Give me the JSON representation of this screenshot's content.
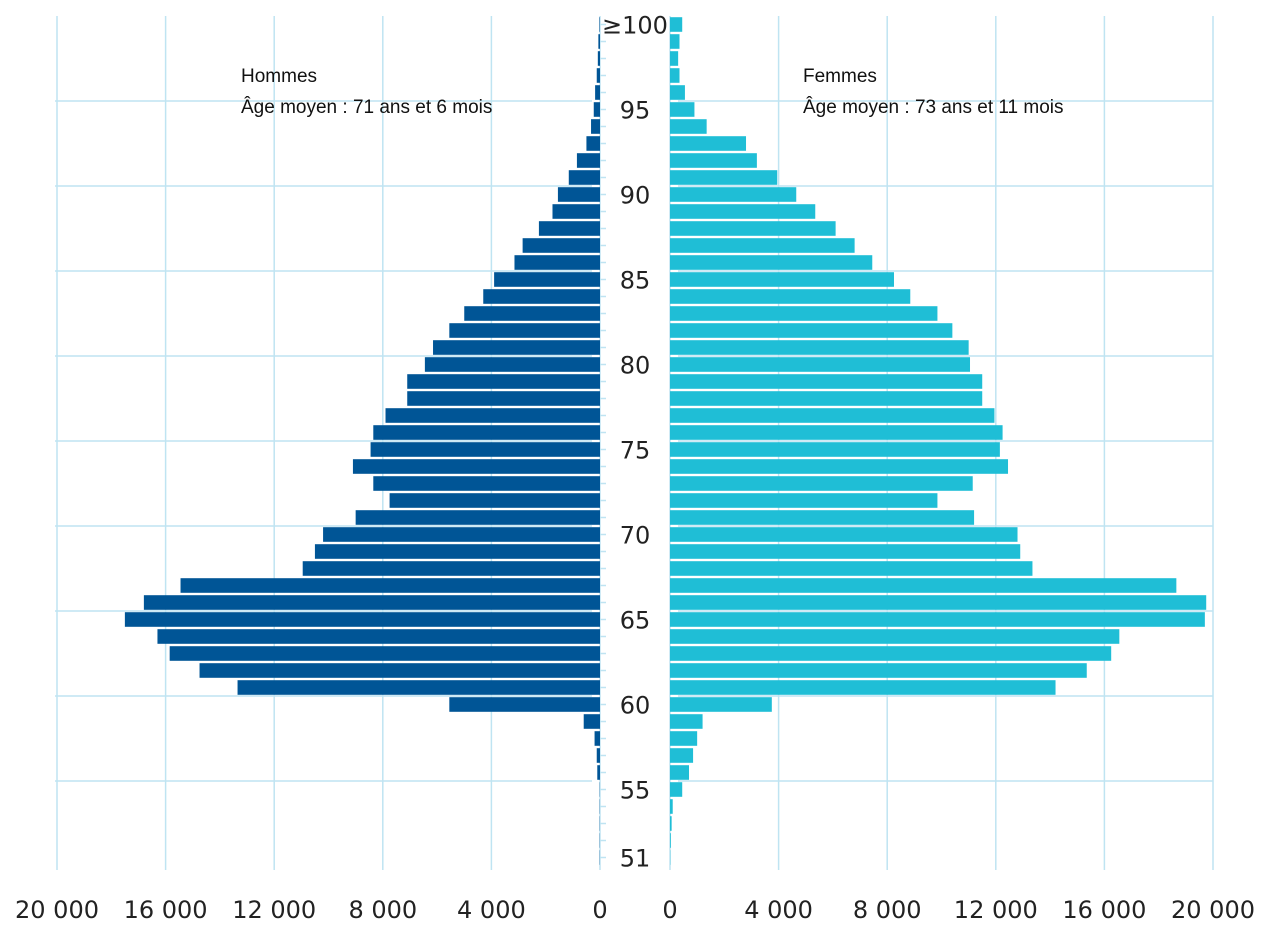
{
  "chart_data": {
    "type": "bar",
    "orientation": "horizontal",
    "layout": "population-pyramid",
    "age_labels": [
      "≥100",
      "95",
      "90",
      "85",
      "80",
      "75",
      "70",
      "65",
      "60",
      "55",
      "51"
    ],
    "x_ticks": [
      "20 000",
      "16 000",
      "12 000",
      "8 000",
      "4 000",
      "0"
    ],
    "xlim": [
      0,
      20000
    ],
    "ages": [
      "≥100",
      99,
      98,
      97,
      96,
      95,
      94,
      93,
      92,
      91,
      90,
      89,
      88,
      87,
      86,
      85,
      84,
      83,
      82,
      81,
      80,
      79,
      78,
      77,
      76,
      75,
      74,
      73,
      72,
      71,
      70,
      69,
      68,
      67,
      66,
      65,
      64,
      63,
      62,
      61,
      60,
      59,
      58,
      57,
      56,
      55,
      54,
      53,
      52,
      51
    ],
    "series": [
      {
        "name": "Hommes",
        "subtitle": "Âge moyen : 71 ans et 6 mois",
        "color": "#005596",
        "values": [
          20,
          60,
          80,
          120,
          180,
          230,
          330,
          500,
          850,
          1150,
          1550,
          1750,
          2250,
          2850,
          3150,
          3900,
          4300,
          5000,
          5550,
          6150,
          6450,
          7100,
          7100,
          7900,
          8350,
          8450,
          9100,
          8350,
          7750,
          9000,
          10200,
          10500,
          10950,
          15450,
          16800,
          17500,
          16300,
          15850,
          14750,
          13350,
          5550,
          600,
          200,
          120,
          100,
          10,
          10,
          10,
          10,
          10
        ],
        "value_unit": "count"
      },
      {
        "name": "Femmes",
        "subtitle": "Âge moyen : 73 ans et 11 mois",
        "color": "#1fbed6",
        "values": [
          450,
          350,
          300,
          350,
          550,
          900,
          1350,
          2800,
          3200,
          3950,
          4650,
          5350,
          6100,
          6800,
          7450,
          8250,
          8850,
          9850,
          10400,
          11000,
          11050,
          11500,
          11500,
          11950,
          12250,
          12150,
          12450,
          11150,
          9850,
          11200,
          12800,
          12900,
          13350,
          18650,
          19750,
          19700,
          16550,
          16250,
          15350,
          14200,
          3750,
          1200,
          1000,
          850,
          700,
          450,
          100,
          60,
          30,
          10
        ],
        "value_unit": "count"
      }
    ]
  }
}
